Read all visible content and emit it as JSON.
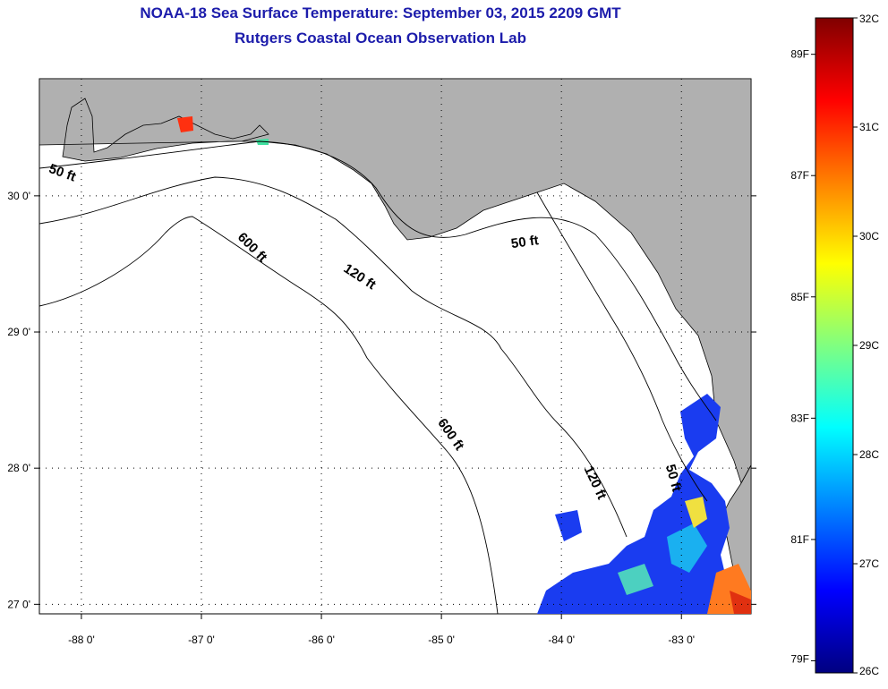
{
  "title": {
    "line1": "NOAA-18 Sea Surface Temperature:  September 03, 2015 2209 GMT",
    "line2": "Rutgers Coastal Ocean Observation Lab"
  },
  "colors": {
    "title": "#1c1cab",
    "land": "#b0b0b0",
    "water": "#ffffff",
    "coast": "#000000"
  },
  "map": {
    "lon_range": [
      -88.35,
      -82.42
    ],
    "lat_range": [
      26.93,
      30.86
    ],
    "lon_ticks": [
      {
        "value": -88,
        "label": "-88 0'"
      },
      {
        "value": -87,
        "label": "-87 0'"
      },
      {
        "value": -86,
        "label": "-86 0'"
      },
      {
        "value": -85,
        "label": "-85 0'"
      },
      {
        "value": -84,
        "label": "-84 0'"
      },
      {
        "value": -83,
        "label": "-83 0'"
      }
    ],
    "lat_ticks": [
      {
        "value": 30,
        "label": "30 0'"
      },
      {
        "value": 29,
        "label": "29 0'"
      },
      {
        "value": 28,
        "label": "28 0'"
      },
      {
        "value": 27,
        "label": "27 0'"
      }
    ],
    "contour_labels": [
      {
        "text": "50 ft",
        "lon": -88.17,
        "lat": 30.14,
        "rotate": 20
      },
      {
        "text": "600 ft",
        "lon": -86.6,
        "lat": 29.6,
        "rotate": 45
      },
      {
        "text": "120 ft",
        "lon": -85.7,
        "lat": 29.38,
        "rotate": 33
      },
      {
        "text": "50 ft",
        "lon": -84.3,
        "lat": 29.63,
        "rotate": -8
      },
      {
        "text": "600 ft",
        "lon": -84.95,
        "lat": 28.23,
        "rotate": 55
      },
      {
        "text": "120 ft",
        "lon": -83.75,
        "lat": 27.88,
        "rotate": 65
      },
      {
        "text": "50 ft",
        "lon": -83.1,
        "lat": 27.92,
        "rotate": 75
      }
    ]
  },
  "colorbar": {
    "min_c": 26,
    "max_c": 32,
    "celsius_labels": [
      {
        "value": 32,
        "label": "32C"
      },
      {
        "value": 31,
        "label": "31C"
      },
      {
        "value": 30,
        "label": "30C"
      },
      {
        "value": 29,
        "label": "29C"
      },
      {
        "value": 28,
        "label": "28C"
      },
      {
        "value": 27,
        "label": "27C"
      },
      {
        "value": 26,
        "label": "26C"
      }
    ],
    "fahrenheit_labels": [
      {
        "value": 89,
        "label": "89F"
      },
      {
        "value": 87,
        "label": "87F"
      },
      {
        "value": 85,
        "label": "85F"
      },
      {
        "value": 83,
        "label": "83F"
      },
      {
        "value": 81,
        "label": "81F"
      },
      {
        "value": 79,
        "label": "79F"
      }
    ],
    "gradient": [
      "#000080",
      "#0000ff",
      "#0080ff",
      "#00ffff",
      "#80ff80",
      "#ffff00",
      "#ff8000",
      "#ff0000",
      "#800000"
    ]
  }
}
